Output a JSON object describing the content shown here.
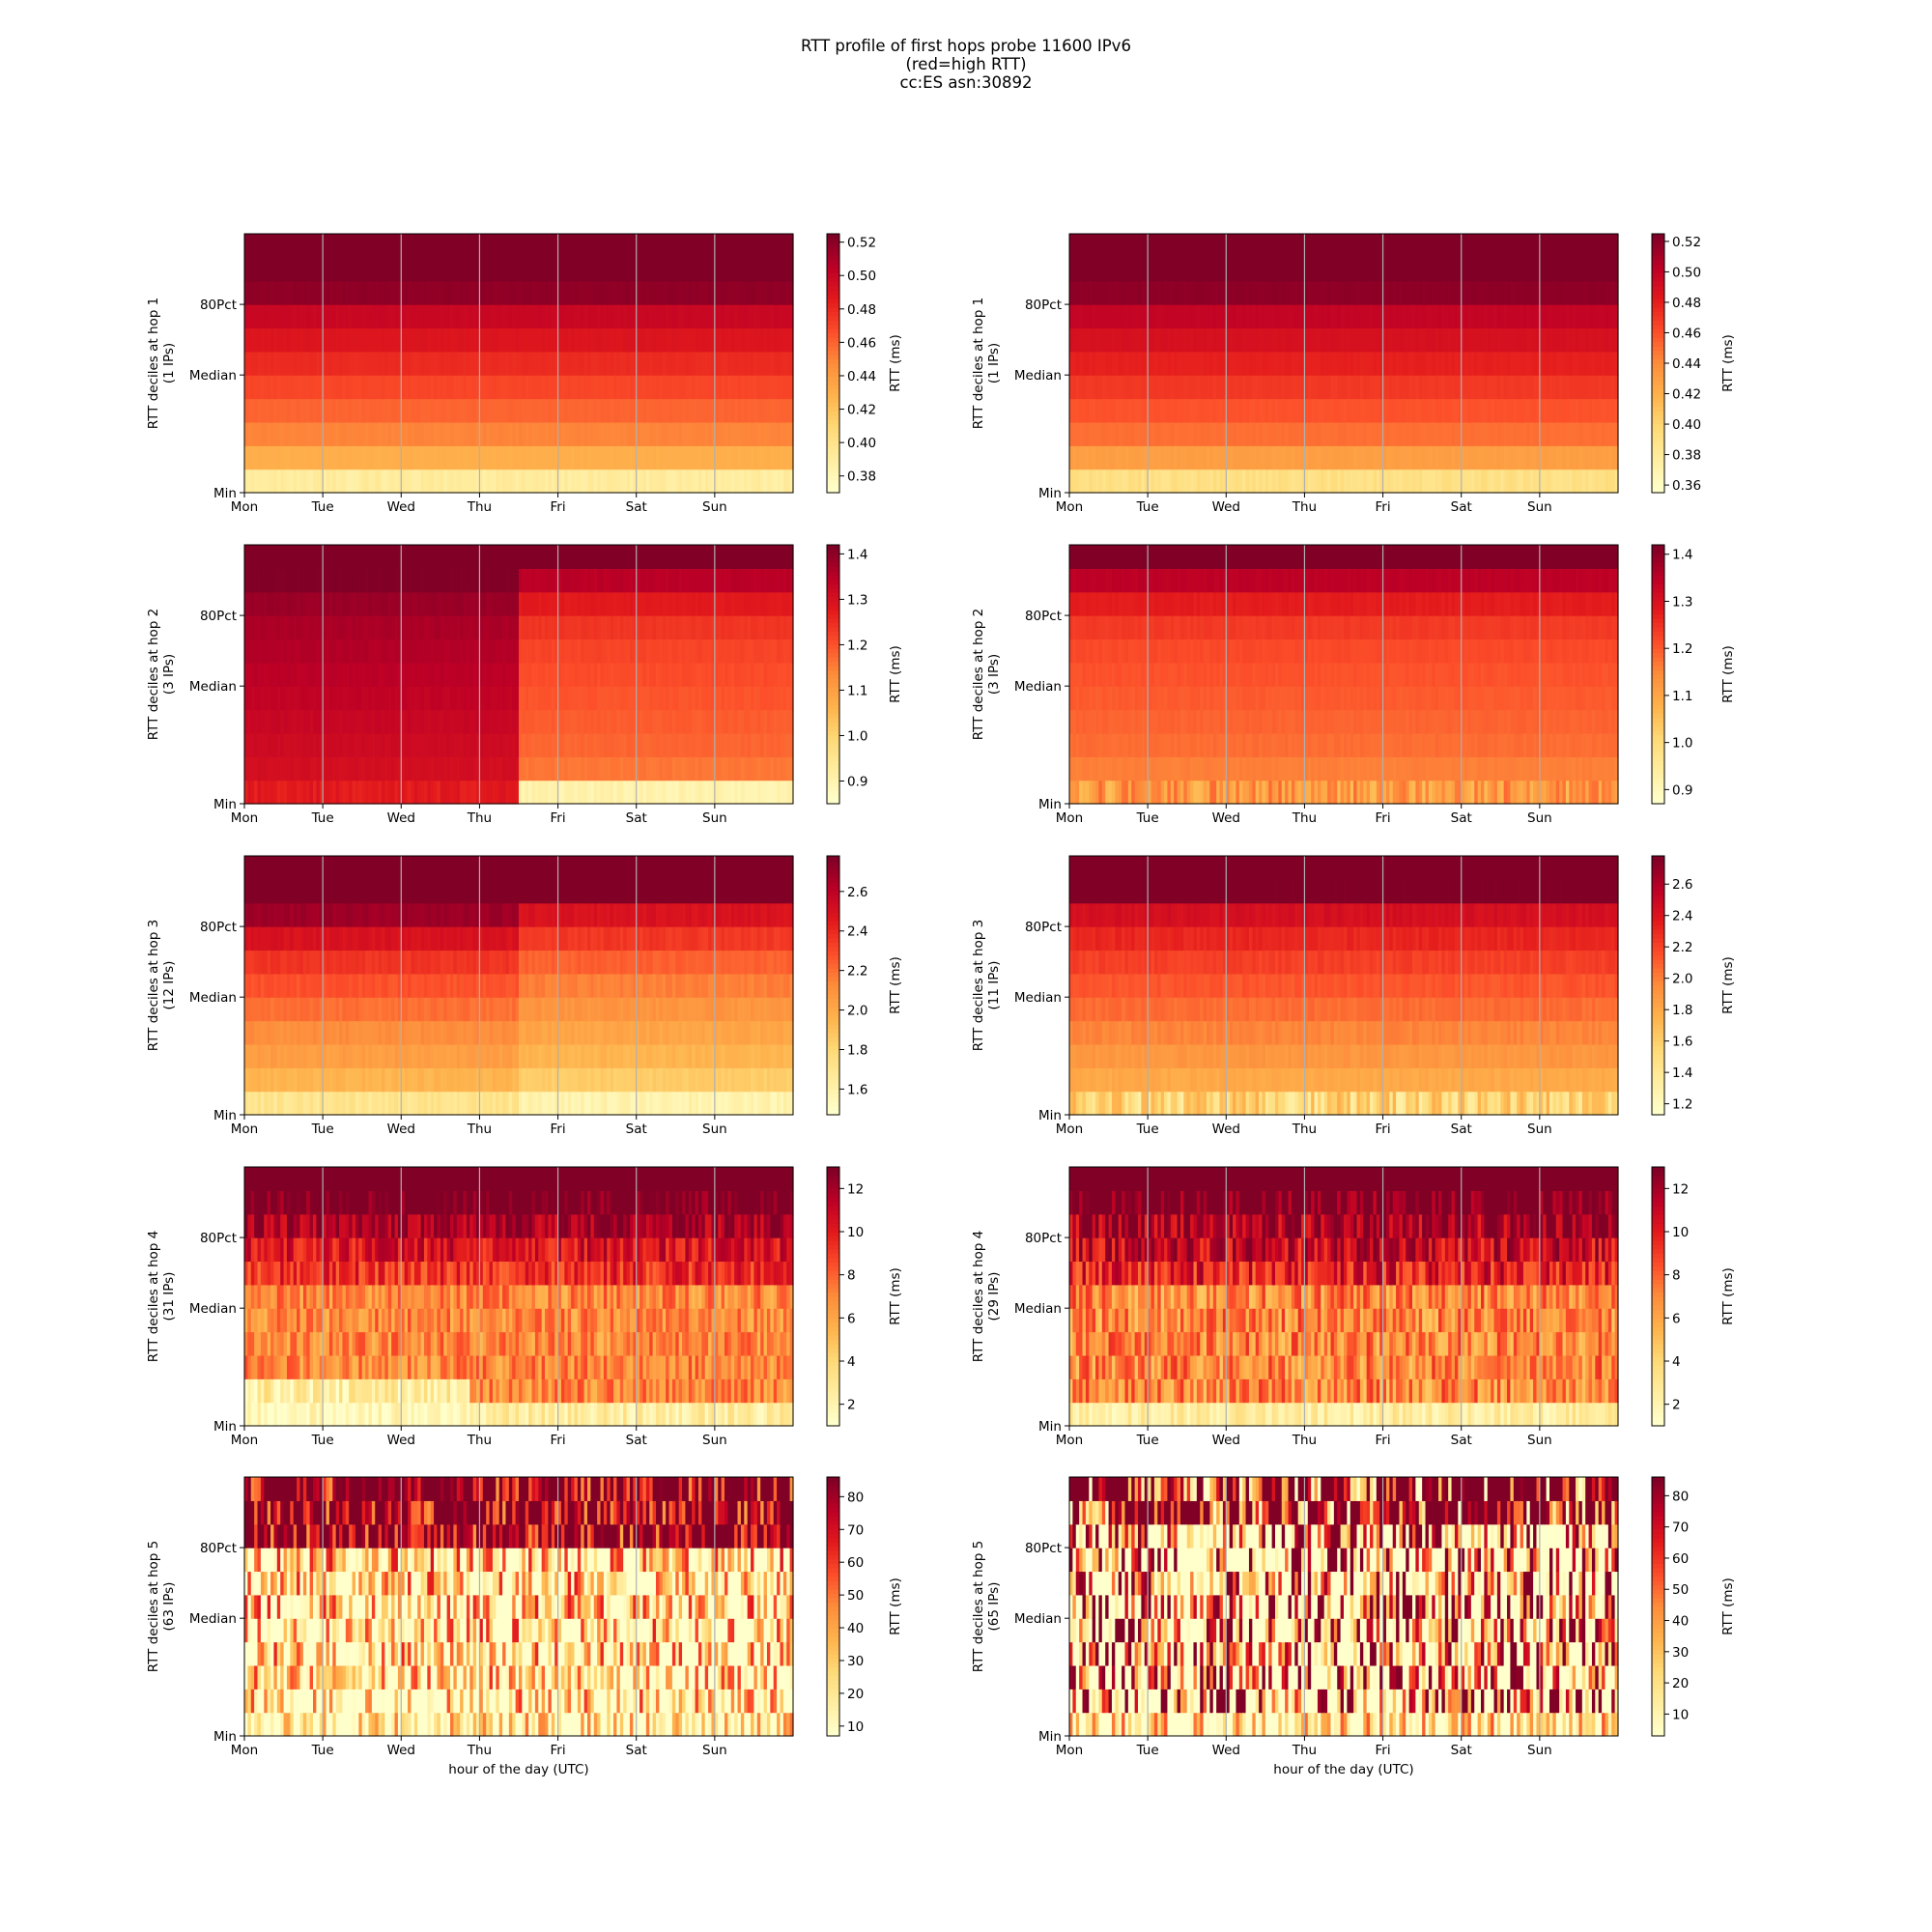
{
  "figure": {
    "title_lines": [
      "RTT profile of first hops probe 11600 IPv6",
      "(red=high RTT)",
      "cc:ES asn:30892"
    ],
    "colormap": "YlOrRd",
    "colormap_stops": [
      "#ffffcc",
      "#ffeda0",
      "#fed976",
      "#feb24c",
      "#fd8d3c",
      "#fc4e2a",
      "#e31a1c",
      "#bd0026",
      "#800026"
    ]
  },
  "axes_common": {
    "y_tick_labels": [
      "80Pct",
      "Median",
      "Min"
    ],
    "x_tick_labels": [
      "Mon",
      "Tue",
      "Wed",
      "Thu",
      "Fri",
      "Sat",
      "Sun"
    ],
    "x_label": "hour of the day (UTC)",
    "colorbar_label": "RTT (ms)",
    "ylabel_prefix": "RTT deciles at hop"
  },
  "chart_data": [
    {
      "type": "heatmap",
      "hop": 1,
      "ylabel": "RTT deciles at hop 1",
      "ylabel2": "(1 IPs)",
      "cbar_ticks": [
        "0.38",
        "0.40",
        "0.42",
        "0.44",
        "0.46",
        "0.48",
        "0.50",
        "0.52"
      ],
      "cbar_range": [
        0.37,
        0.525
      ],
      "profile_a": [
        0.39,
        0.43,
        0.45,
        0.46,
        0.47,
        0.48,
        0.49,
        0.5,
        0.52,
        0.53,
        0.55
      ],
      "profile_b": [
        0.39,
        0.43,
        0.45,
        0.46,
        0.47,
        0.48,
        0.49,
        0.5,
        0.52,
        0.53,
        0.55
      ],
      "change_frac": 1.0,
      "noise": 0.006,
      "min_noise": 0.03
    },
    {
      "type": "heatmap",
      "hop": 1,
      "ylabel": "RTT deciles at hop 1",
      "ylabel2": "(1 IPs)",
      "cbar_ticks": [
        "0.36",
        "0.38",
        "0.40",
        "0.42",
        "0.44",
        "0.46",
        "0.48",
        "0.50",
        "0.52"
      ],
      "cbar_range": [
        0.355,
        0.525
      ],
      "profile_a": [
        0.39,
        0.43,
        0.45,
        0.46,
        0.47,
        0.48,
        0.49,
        0.5,
        0.52,
        0.53,
        0.55
      ],
      "profile_b": [
        0.39,
        0.43,
        0.45,
        0.46,
        0.47,
        0.48,
        0.49,
        0.5,
        0.52,
        0.53,
        0.55
      ],
      "change_frac": 1.0,
      "noise": 0.006,
      "min_noise": 0.03
    },
    {
      "type": "heatmap",
      "hop": 2,
      "ylabel": "RTT deciles at hop 2",
      "ylabel2": "(3 IPs)",
      "cbar_ticks": [
        "0.9",
        "1.0",
        "1.1",
        "1.2",
        "1.3",
        "1.4"
      ],
      "cbar_range": [
        0.85,
        1.42
      ],
      "profile_a": [
        1.28,
        1.31,
        1.32,
        1.33,
        1.34,
        1.35,
        1.36,
        1.37,
        1.39,
        1.42,
        1.5
      ],
      "profile_b": [
        0.9,
        1.16,
        1.18,
        1.19,
        1.2,
        1.21,
        1.22,
        1.24,
        1.28,
        1.35,
        1.5
      ],
      "change_frac": 0.5,
      "noise": 0.01,
      "min_noise": 0.03
    },
    {
      "type": "heatmap",
      "hop": 2,
      "ylabel": "RTT deciles at hop 2",
      "ylabel2": "(3 IPs)",
      "cbar_ticks": [
        "0.9",
        "1.0",
        "1.1",
        "1.2",
        "1.3",
        "1.4"
      ],
      "cbar_range": [
        0.87,
        1.42
      ],
      "profile_a": [
        1.12,
        1.16,
        1.18,
        1.19,
        1.2,
        1.21,
        1.22,
        1.24,
        1.28,
        1.35,
        1.5
      ],
      "profile_b": [
        1.12,
        1.16,
        1.18,
        1.19,
        1.2,
        1.21,
        1.22,
        1.24,
        1.28,
        1.35,
        1.5
      ],
      "change_frac": 1.0,
      "noise": 0.01,
      "min_noise": 0.12
    },
    {
      "type": "heatmap",
      "hop": 3,
      "ylabel": "RTT deciles at hop 3",
      "ylabel2": "(12 IPs)",
      "cbar_ticks": [
        "1.6",
        "1.8",
        "2.0",
        "2.2",
        "2.4",
        "2.6"
      ],
      "cbar_range": [
        1.47,
        2.78
      ],
      "profile_a": [
        1.7,
        1.95,
        2.05,
        2.12,
        2.2,
        2.28,
        2.37,
        2.5,
        2.7,
        3.0,
        3.4
      ],
      "profile_b": [
        1.58,
        1.85,
        1.95,
        2.02,
        2.09,
        2.16,
        2.24,
        2.36,
        2.5,
        2.9,
        3.4
      ],
      "change_frac": 0.5,
      "noise": 0.02,
      "min_noise": 0.04
    },
    {
      "type": "heatmap",
      "hop": 3,
      "ylabel": "RTT deciles at hop 3",
      "ylabel2": "(11 IPs)",
      "cbar_ticks": [
        "1.2",
        "1.4",
        "1.6",
        "1.8",
        "2.0",
        "2.2",
        "2.4",
        "2.6"
      ],
      "cbar_range": [
        1.13,
        2.78
      ],
      "profile_a": [
        1.55,
        1.8,
        1.9,
        1.98,
        2.06,
        2.14,
        2.22,
        2.32,
        2.45,
        2.8,
        3.4
      ],
      "profile_b": [
        1.55,
        1.8,
        1.9,
        1.98,
        2.06,
        2.14,
        2.22,
        2.32,
        2.45,
        2.8,
        3.4
      ],
      "change_frac": 1.0,
      "noise": 0.02,
      "min_noise": 0.15
    },
    {
      "type": "heatmap",
      "hop": 4,
      "ylabel": "RTT deciles at hop 4",
      "ylabel2": "(31 IPs)",
      "cbar_ticks": [
        "2",
        "4",
        "6",
        "8",
        "10",
        "12"
      ],
      "cbar_range": [
        1.0,
        13.0
      ],
      "profile_a": [
        1.5,
        2.5,
        7.0,
        7.0,
        7.0,
        7.0,
        9.5,
        10.5,
        12.0,
        13.5,
        20
      ],
      "profile_b": [
        2.5,
        7.0,
        7.0,
        7.0,
        7.0,
        7.0,
        9.5,
        10.5,
        12.0,
        13.5,
        20
      ],
      "change_frac": 0.41,
      "noise": 0.15,
      "min_noise": 0.1
    },
    {
      "type": "heatmap",
      "hop": 4,
      "ylabel": "RTT deciles at hop 4",
      "ylabel2": "(29 IPs)",
      "cbar_ticks": [
        "2",
        "4",
        "6",
        "8",
        "10",
        "12"
      ],
      "cbar_range": [
        1.0,
        13.0
      ],
      "profile_a": [
        2.5,
        7.0,
        7.0,
        7.0,
        7.0,
        7.0,
        10.0,
        11.0,
        12.0,
        13.5,
        20
      ],
      "profile_b": [
        2.5,
        7.0,
        7.0,
        7.0,
        7.0,
        7.0,
        10.0,
        11.0,
        12.0,
        13.5,
        20
      ],
      "change_frac": 1.0,
      "noise": 0.2,
      "min_noise": 0.1
    },
    {
      "type": "heatmap",
      "hop": 5,
      "ylabel": "RTT deciles at hop 5",
      "ylabel2": "(63 IPs)",
      "cbar_ticks": [
        "10",
        "20",
        "30",
        "40",
        "50",
        "60",
        "70",
        "80"
      ],
      "cbar_range": [
        7.0,
        86.0
      ],
      "profile_a": [
        12,
        16,
        17,
        18,
        19,
        20,
        21,
        22,
        85,
        87,
        90
      ],
      "profile_b": [
        12,
        16,
        17,
        18,
        19,
        20,
        21,
        22,
        85,
        87,
        90
      ],
      "change_frac": 1.0,
      "noise": 0.6,
      "min_noise": 0.5
    },
    {
      "type": "heatmap",
      "hop": 5,
      "ylabel": "RTT deciles at hop 5",
      "ylabel2": "(65 IPs)",
      "cbar_ticks": [
        "10",
        "20",
        "30",
        "40",
        "50",
        "60",
        "70",
        "80"
      ],
      "cbar_range": [
        3.0,
        86.0
      ],
      "profile_a": [
        14,
        20,
        21,
        21.5,
        22,
        22.5,
        23,
        24,
        28,
        87,
        90
      ],
      "profile_b": [
        14,
        20,
        21,
        21.5,
        22,
        22.5,
        23,
        24,
        28,
        87,
        90
      ],
      "change_frac": 1.0,
      "noise": 1.2,
      "min_noise": 0.5
    }
  ]
}
